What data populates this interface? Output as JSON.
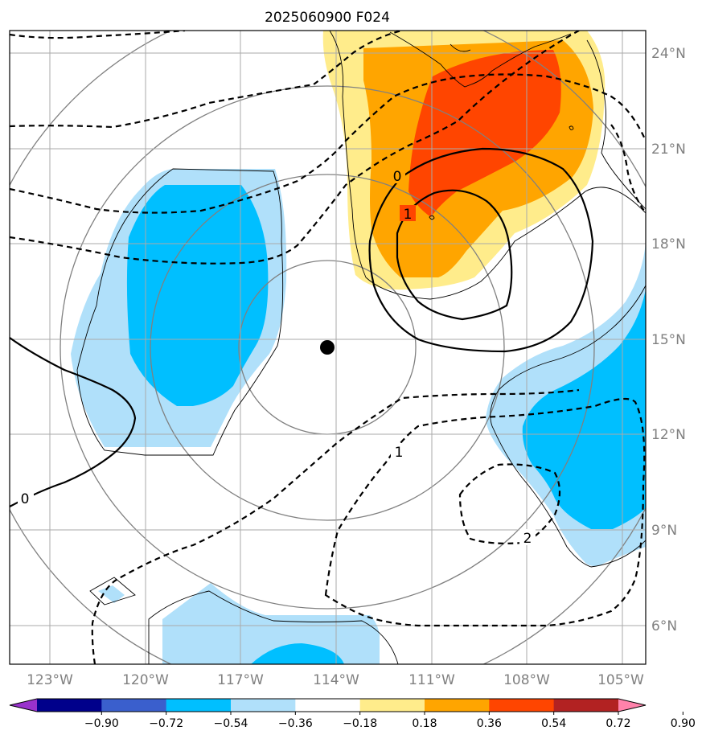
{
  "title": "2025060900 F024",
  "latitude_labels": [
    "24°N",
    "21°N",
    "18°N",
    "15°N",
    "12°N",
    "9°N",
    "6°N"
  ],
  "longitude_labels": [
    "123°W",
    "120°W",
    "117°W",
    "114°W",
    "111°W",
    "108°W",
    "105°W"
  ],
  "contour_labels": [
    "0",
    "1",
    "0",
    "1",
    "2"
  ],
  "colorbar": {
    "ticks": [
      "−0.90",
      "−0.72",
      "−0.54",
      "−0.36",
      "−0.18",
      "0.18",
      "0.36",
      "0.54",
      "0.72",
      "0.90"
    ],
    "colors": [
      "#9932cc",
      "#00008b",
      "#3a5fcd",
      "#00bfff",
      "#b0e0fa",
      "#ffffff",
      "#ffec8b",
      "#ffa500",
      "#ff4500",
      "#b22222",
      "#ff82ab"
    ]
  },
  "center_marker_color": "#000000"
}
